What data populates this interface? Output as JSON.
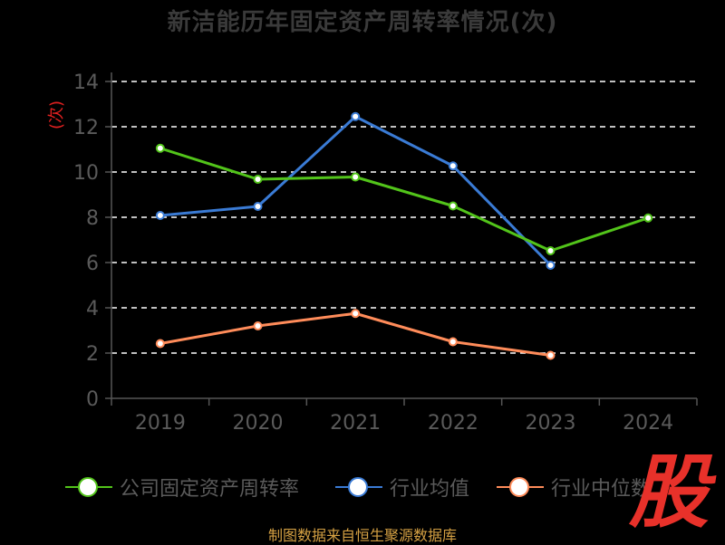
{
  "title": "新洁能历年固定资产周转率情况(次)",
  "source": "制图数据来自恒生聚源数据库",
  "logo_text": "股",
  "colors": {
    "background": "#000000",
    "grid": "#ffffff",
    "axis": "#555555",
    "tick_label": "#5a5a5a",
    "unit_label": "#e02020"
  },
  "chart_data": {
    "type": "line",
    "ylabel": "(次)",
    "ylim": [
      0,
      14
    ],
    "yticks": [
      0,
      2,
      4,
      6,
      8,
      10,
      12,
      14
    ],
    "categories": [
      "2019",
      "2020",
      "2021",
      "2022",
      "2023",
      "2024"
    ],
    "grid": true,
    "legend_position": "bottom",
    "series": [
      {
        "name": "公司固定资产周转率",
        "color": "#52c41a",
        "values": [
          11.05,
          9.68,
          9.78,
          8.5,
          6.52,
          7.97
        ]
      },
      {
        "name": "行业均值",
        "color": "#3a7bd5",
        "values": [
          8.08,
          8.48,
          12.45,
          10.27,
          5.88,
          null
        ]
      },
      {
        "name": "行业中位数",
        "color": "#ff8c5a",
        "values": [
          2.42,
          3.2,
          3.75,
          2.5,
          1.9,
          null
        ]
      }
    ]
  }
}
